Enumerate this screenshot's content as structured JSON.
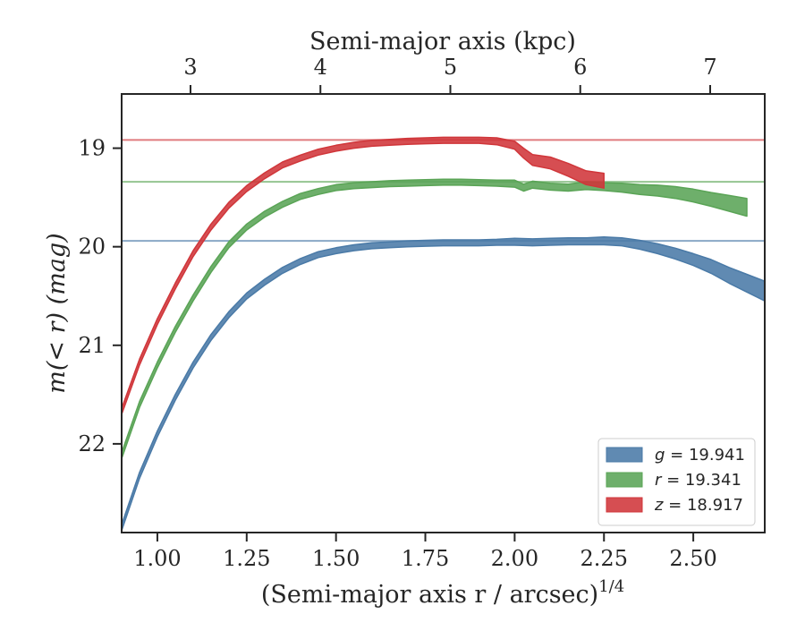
{
  "chart_data": {
    "type": "area",
    "title": "",
    "xlabel": "(Semi-major axis r / arcsec)",
    "xlabel_exponent": "1/4",
    "ylabel": "m(< r) (mag)",
    "top_xlabel": "Semi-major axis (kpc)",
    "xlim": [
      0.9,
      2.7
    ],
    "ylim": [
      22.9,
      18.45
    ],
    "y_inverted": true,
    "top_xlim": [
      2.47,
      7.42
    ],
    "grid": false,
    "x_ticks": [
      1.0,
      1.25,
      1.5,
      1.75,
      2.0,
      2.25,
      2.5
    ],
    "x_tick_labels": [
      "1.00",
      "1.25",
      "1.50",
      "1.75",
      "2.00",
      "2.25",
      "2.50"
    ],
    "y_ticks": [
      19,
      20,
      21,
      22
    ],
    "y_tick_labels": [
      "19",
      "20",
      "21",
      "22"
    ],
    "top_x_ticks": [
      3,
      4,
      5,
      6,
      7
    ],
    "top_x_tick_labels": [
      "3",
      "4",
      "5",
      "6",
      "7"
    ],
    "legend": {
      "placement": "lower-right",
      "entries": [
        {
          "band": "g",
          "value": "19.941"
        },
        {
          "band": "r",
          "value": "19.341"
        },
        {
          "band": "z",
          "value": "18.917"
        }
      ]
    },
    "series": [
      {
        "name": "g = 19.941",
        "color": "#4a7aa7",
        "asymptote": 19.941,
        "x": [
          0.9,
          0.95,
          1.0,
          1.05,
          1.1,
          1.15,
          1.2,
          1.25,
          1.3,
          1.35,
          1.4,
          1.45,
          1.5,
          1.55,
          1.6,
          1.65,
          1.7,
          1.75,
          1.8,
          1.85,
          1.9,
          1.95,
          2.0,
          2.05,
          2.1,
          2.15,
          2.2,
          2.25,
          2.3,
          2.35,
          2.4,
          2.45,
          2.5,
          2.55,
          2.6,
          2.65,
          2.7
        ],
        "y": [
          22.85,
          22.32,
          21.9,
          21.53,
          21.2,
          20.92,
          20.69,
          20.5,
          20.36,
          20.24,
          20.15,
          20.08,
          20.04,
          20.01,
          19.99,
          19.98,
          19.97,
          19.965,
          19.96,
          19.96,
          19.96,
          19.955,
          19.95,
          19.955,
          19.95,
          19.945,
          19.945,
          19.94,
          19.95,
          19.98,
          20.02,
          20.07,
          20.13,
          20.2,
          20.29,
          20.37,
          20.45
        ],
        "band": [
          0.03,
          0.03,
          0.03,
          0.03,
          0.03,
          0.03,
          0.03,
          0.03,
          0.03,
          0.03,
          0.03,
          0.03,
          0.03,
          0.03,
          0.03,
          0.03,
          0.03,
          0.03,
          0.03,
          0.03,
          0.03,
          0.03,
          0.035,
          0.035,
          0.035,
          0.035,
          0.035,
          0.04,
          0.04,
          0.045,
          0.05,
          0.055,
          0.06,
          0.07,
          0.08,
          0.09,
          0.1
        ]
      },
      {
        "name": "r = 19.341",
        "color": "#5aa456",
        "asymptote": 19.341,
        "x": [
          0.9,
          0.95,
          1.0,
          1.05,
          1.1,
          1.15,
          1.2,
          1.25,
          1.3,
          1.35,
          1.4,
          1.45,
          1.5,
          1.55,
          1.6,
          1.65,
          1.7,
          1.75,
          1.8,
          1.85,
          1.9,
          1.95,
          2.0,
          2.025,
          2.05,
          2.1,
          2.15,
          2.2,
          2.25,
          2.3,
          2.35,
          2.4,
          2.45,
          2.5,
          2.55,
          2.6,
          2.65
        ],
        "y": [
          22.12,
          21.6,
          21.2,
          20.84,
          20.52,
          20.23,
          19.98,
          19.8,
          19.67,
          19.57,
          19.49,
          19.44,
          19.4,
          19.38,
          19.37,
          19.36,
          19.355,
          19.35,
          19.345,
          19.345,
          19.35,
          19.355,
          19.36,
          19.4,
          19.37,
          19.39,
          19.4,
          19.38,
          19.39,
          19.4,
          19.42,
          19.43,
          19.45,
          19.48,
          19.52,
          19.56,
          19.6
        ],
        "band": [
          0.03,
          0.03,
          0.03,
          0.03,
          0.03,
          0.03,
          0.03,
          0.03,
          0.03,
          0.03,
          0.03,
          0.03,
          0.03,
          0.03,
          0.03,
          0.03,
          0.03,
          0.03,
          0.03,
          0.03,
          0.03,
          0.03,
          0.035,
          0.035,
          0.035,
          0.035,
          0.035,
          0.04,
          0.04,
          0.045,
          0.05,
          0.055,
          0.06,
          0.065,
          0.07,
          0.08,
          0.09
        ]
      },
      {
        "name": "z = 18.917",
        "color": "#d0363a",
        "asymptote": 18.917,
        "x": [
          0.9,
          0.95,
          1.0,
          1.05,
          1.1,
          1.15,
          1.2,
          1.25,
          1.3,
          1.35,
          1.4,
          1.45,
          1.5,
          1.55,
          1.6,
          1.65,
          1.7,
          1.75,
          1.8,
          1.85,
          1.9,
          1.95,
          2.0,
          2.025,
          2.05,
          2.1,
          2.15,
          2.2,
          2.25
        ],
        "y": [
          21.67,
          21.17,
          20.76,
          20.4,
          20.07,
          19.8,
          19.58,
          19.41,
          19.28,
          19.17,
          19.1,
          19.04,
          19.0,
          18.97,
          18.95,
          18.94,
          18.93,
          18.925,
          18.92,
          18.92,
          18.92,
          18.93,
          18.97,
          19.05,
          19.12,
          19.15,
          19.22,
          19.3,
          19.33
        ],
        "band": [
          0.03,
          0.03,
          0.03,
          0.03,
          0.03,
          0.03,
          0.03,
          0.03,
          0.03,
          0.03,
          0.03,
          0.03,
          0.03,
          0.03,
          0.03,
          0.03,
          0.03,
          0.03,
          0.03,
          0.03,
          0.03,
          0.035,
          0.04,
          0.05,
          0.055,
          0.06,
          0.065,
          0.07,
          0.075
        ]
      }
    ]
  }
}
